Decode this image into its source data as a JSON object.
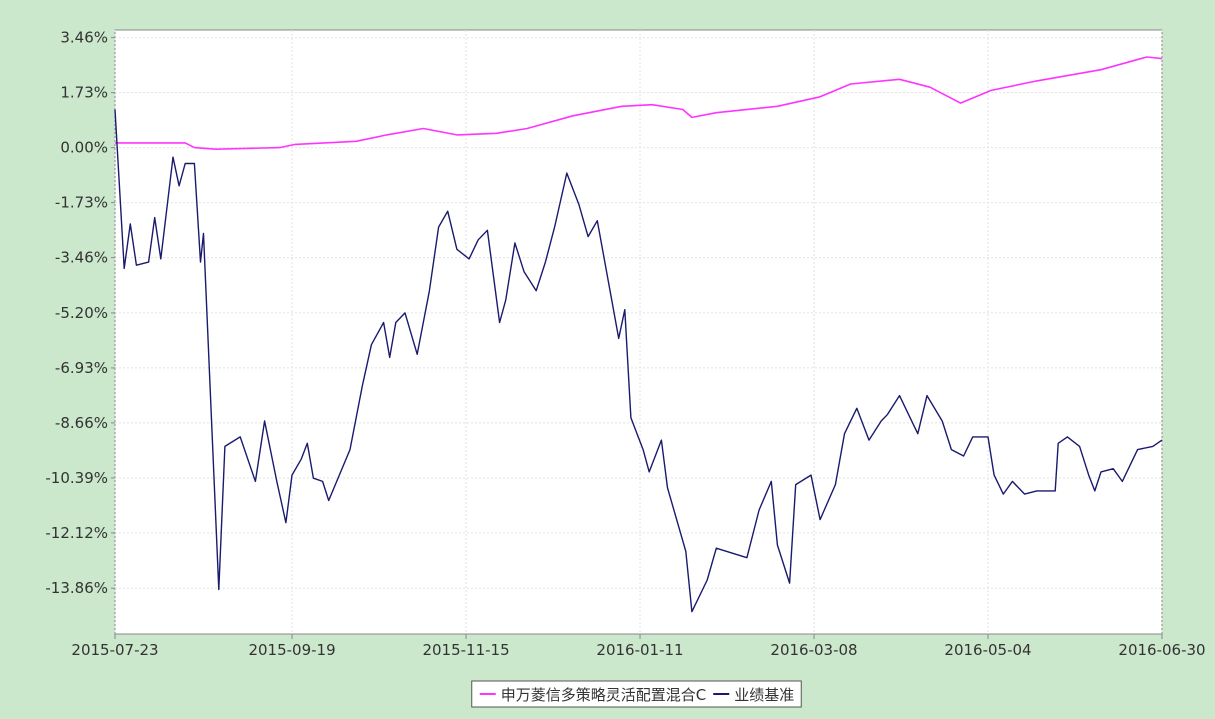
{
  "chart_data": {
    "type": "line",
    "title": "",
    "xlabel": "",
    "ylabel": "",
    "x_ticks": [
      "2015-07-23",
      "2015-09-19",
      "2015-11-15",
      "2016-01-11",
      "2016-03-08",
      "2016-05-04",
      "2016-06-30"
    ],
    "y_ticks": [
      "3.46%",
      "1.73%",
      "0.00%",
      "-1.73%",
      "-3.46%",
      "-5.20%",
      "-6.93%",
      "-8.66%",
      "-10.39%",
      "-12.12%",
      "-13.86%"
    ],
    "x_range": [
      "2015-07-23",
      "2016-06-30"
    ],
    "ylim": [
      -15.3,
      3.7
    ],
    "grid": true,
    "legend_position": "bottom-center",
    "series": [
      {
        "name": "申万菱信多策略灵活配置混合C",
        "color": "#ff33ff",
        "points": [
          [
            "2015-07-23",
            0.15
          ],
          [
            "2015-08-15",
            0.15
          ],
          [
            "2015-08-18",
            0.0
          ],
          [
            "2015-08-25",
            -0.05
          ],
          [
            "2015-09-15",
            0.0
          ],
          [
            "2015-09-20",
            0.1
          ],
          [
            "2015-10-10",
            0.2
          ],
          [
            "2015-10-20",
            0.4
          ],
          [
            "2015-11-01",
            0.6
          ],
          [
            "2015-11-12",
            0.4
          ],
          [
            "2015-11-25",
            0.45
          ],
          [
            "2015-12-05",
            0.6
          ],
          [
            "2015-12-20",
            1.0
          ],
          [
            "2016-01-05",
            1.3
          ],
          [
            "2016-01-15",
            1.35
          ],
          [
            "2016-01-25",
            1.2
          ],
          [
            "2016-01-28",
            0.95
          ],
          [
            "2016-02-05",
            1.1
          ],
          [
            "2016-02-25",
            1.3
          ],
          [
            "2016-03-10",
            1.6
          ],
          [
            "2016-03-20",
            2.0
          ],
          [
            "2016-04-05",
            2.15
          ],
          [
            "2016-04-15",
            1.9
          ],
          [
            "2016-04-25",
            1.4
          ],
          [
            "2016-05-05",
            1.8
          ],
          [
            "2016-05-20",
            2.1
          ],
          [
            "2016-06-10",
            2.45
          ],
          [
            "2016-06-25",
            2.85
          ],
          [
            "2016-06-30",
            2.8
          ]
        ]
      },
      {
        "name": "业绩基准",
        "color": "#1a1a6e",
        "points": [
          [
            "2015-07-23",
            1.2
          ],
          [
            "2015-07-26",
            -3.8
          ],
          [
            "2015-07-28",
            -2.4
          ],
          [
            "2015-07-30",
            -3.7
          ],
          [
            "2015-08-03",
            -3.6
          ],
          [
            "2015-08-05",
            -2.2
          ],
          [
            "2015-08-07",
            -3.5
          ],
          [
            "2015-08-11",
            -0.3
          ],
          [
            "2015-08-13",
            -1.2
          ],
          [
            "2015-08-15",
            -0.5
          ],
          [
            "2015-08-18",
            -0.5
          ],
          [
            "2015-08-20",
            -3.6
          ],
          [
            "2015-08-21",
            -2.7
          ],
          [
            "2015-08-26",
            -13.9
          ],
          [
            "2015-08-28",
            -9.4
          ],
          [
            "2015-09-02",
            -9.1
          ],
          [
            "2015-09-07",
            -10.5
          ],
          [
            "2015-09-10",
            -8.6
          ],
          [
            "2015-09-14",
            -10.5
          ],
          [
            "2015-09-17",
            -11.8
          ],
          [
            "2015-09-19",
            -10.3
          ],
          [
            "2015-09-22",
            -9.8
          ],
          [
            "2015-09-24",
            -9.3
          ],
          [
            "2015-09-26",
            -10.4
          ],
          [
            "2015-09-29",
            -10.5
          ],
          [
            "2015-10-01",
            -11.1
          ],
          [
            "2015-10-08",
            -9.5
          ],
          [
            "2015-10-12",
            -7.5
          ],
          [
            "2015-10-15",
            -6.2
          ],
          [
            "2015-10-19",
            -5.5
          ],
          [
            "2015-10-21",
            -6.6
          ],
          [
            "2015-10-23",
            -5.5
          ],
          [
            "2015-10-26",
            -5.2
          ],
          [
            "2015-10-30",
            -6.5
          ],
          [
            "2015-11-03",
            -4.5
          ],
          [
            "2015-11-06",
            -2.5
          ],
          [
            "2015-11-09",
            -2.0
          ],
          [
            "2015-11-12",
            -3.2
          ],
          [
            "2015-11-16",
            -3.5
          ],
          [
            "2015-11-19",
            -2.9
          ],
          [
            "2015-11-22",
            -2.6
          ],
          [
            "2015-11-26",
            -5.5
          ],
          [
            "2015-11-28",
            -4.8
          ],
          [
            "2015-12-01",
            -3.0
          ],
          [
            "2015-12-04",
            -3.9
          ],
          [
            "2015-12-08",
            -4.5
          ],
          [
            "2015-12-11",
            -3.6
          ],
          [
            "2015-12-14",
            -2.5
          ],
          [
            "2015-12-18",
            -0.8
          ],
          [
            "2015-12-22",
            -1.8
          ],
          [
            "2015-12-25",
            -2.8
          ],
          [
            "2015-12-28",
            -2.3
          ],
          [
            "2016-01-04",
            -6.0
          ],
          [
            "2016-01-06",
            -5.1
          ],
          [
            "2016-01-08",
            -8.5
          ],
          [
            "2016-01-12",
            -9.5
          ],
          [
            "2016-01-14",
            -10.2
          ],
          [
            "2016-01-18",
            -9.2
          ],
          [
            "2016-01-20",
            -10.7
          ],
          [
            "2016-01-26",
            -12.7
          ],
          [
            "2016-01-28",
            -14.6
          ],
          [
            "2016-02-02",
            -13.6
          ],
          [
            "2016-02-05",
            -12.6
          ],
          [
            "2016-02-15",
            -12.9
          ],
          [
            "2016-02-19",
            -11.4
          ],
          [
            "2016-02-23",
            -10.5
          ],
          [
            "2016-02-25",
            -12.5
          ],
          [
            "2016-02-29",
            -13.7
          ],
          [
            "2016-03-02",
            -10.6
          ],
          [
            "2016-03-07",
            -10.3
          ],
          [
            "2016-03-10",
            -11.7
          ],
          [
            "2016-03-15",
            -10.6
          ],
          [
            "2016-03-18",
            -9.0
          ],
          [
            "2016-03-22",
            -8.2
          ],
          [
            "2016-03-26",
            -9.2
          ],
          [
            "2016-03-30",
            -8.6
          ],
          [
            "2016-04-01",
            -8.4
          ],
          [
            "2016-04-05",
            -7.8
          ],
          [
            "2016-04-07",
            -8.2
          ],
          [
            "2016-04-11",
            -9.0
          ],
          [
            "2016-04-14",
            -7.8
          ],
          [
            "2016-04-19",
            -8.6
          ],
          [
            "2016-04-22",
            -9.5
          ],
          [
            "2016-04-26",
            -9.7
          ],
          [
            "2016-04-29",
            -9.1
          ],
          [
            "2016-05-04",
            -9.1
          ],
          [
            "2016-05-06",
            -10.3
          ],
          [
            "2016-05-09",
            -10.9
          ],
          [
            "2016-05-12",
            -10.5
          ],
          [
            "2016-05-16",
            -10.9
          ],
          [
            "2016-05-20",
            -10.8
          ],
          [
            "2016-05-26",
            -10.8
          ],
          [
            "2016-05-27",
            -9.3
          ],
          [
            "2016-05-30",
            -9.1
          ],
          [
            "2016-06-03",
            -9.4
          ],
          [
            "2016-06-06",
            -10.3
          ],
          [
            "2016-06-08",
            -10.8
          ],
          [
            "2016-06-10",
            -10.2
          ],
          [
            "2016-06-14",
            -10.1
          ],
          [
            "2016-06-17",
            -10.5
          ],
          [
            "2016-06-22",
            -9.5
          ],
          [
            "2016-06-27",
            -9.4
          ],
          [
            "2016-06-30",
            -9.2
          ]
        ]
      }
    ]
  }
}
